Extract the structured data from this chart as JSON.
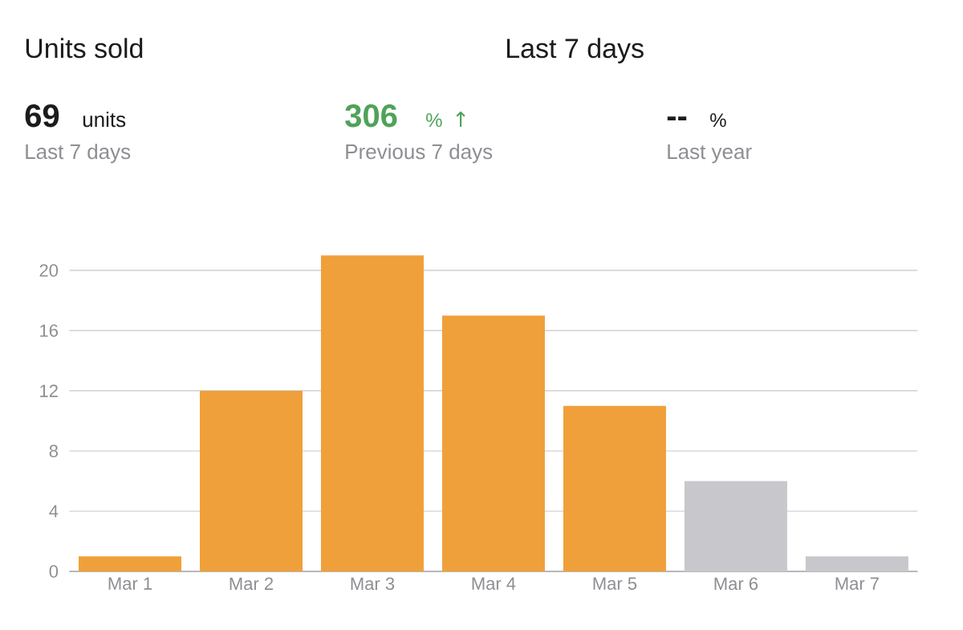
{
  "chart_data": {
    "type": "bar",
    "title": "Units sold",
    "subtitle": "Last 7 days",
    "categories": [
      "Mar 1",
      "Mar 2",
      "Mar 3",
      "Mar 4",
      "Mar 5",
      "Mar 6",
      "Mar 7"
    ],
    "values": [
      1,
      12,
      21,
      17,
      11,
      6,
      1
    ],
    "colors": [
      "#f0a03a",
      "#f0a03a",
      "#f0a03a",
      "#f0a03a",
      "#f0a03a",
      "#c7c7cc",
      "#c7c7cc"
    ],
    "ylim": [
      0,
      21
    ],
    "yticks": [
      0,
      4,
      8,
      12,
      16,
      20
    ],
    "grid": "y",
    "annotations": [
      "69",
      "units",
      "306",
      "%",
      "↑",
      "--",
      "%",
      "Last 7 days",
      "Previous 7 days",
      "Last year"
    ]
  }
}
